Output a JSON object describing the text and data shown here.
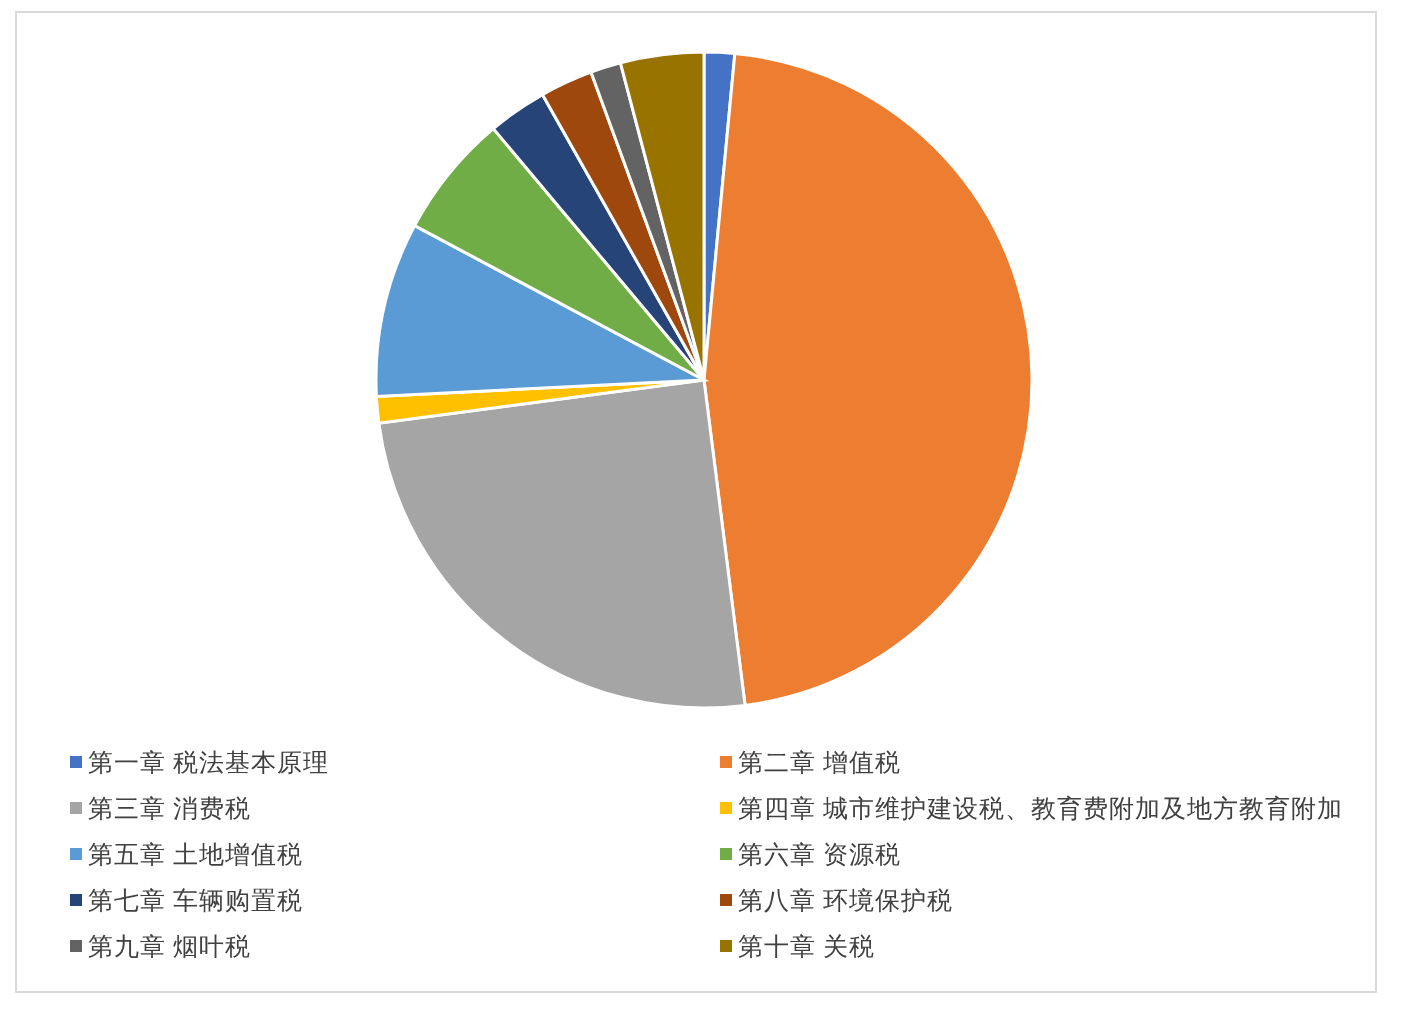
{
  "chart_data": {
    "type": "pie",
    "legend": "bottom",
    "categories": [
      "第一章 税法基本原理",
      "第二章 增值税",
      "第三章 消费税",
      "第四章 城市维护建设税、教育费附加及地方教育附加",
      "第五章 土地增值税",
      "第六章 资源税",
      "第七章 车辆购置税",
      "第八章 环境保护税",
      "第九章 烟叶税",
      "第十章 关税"
    ],
    "values": [
      1.5,
      46.5,
      24.9,
      1.3,
      8.6,
      6.1,
      2.9,
      2.6,
      1.5,
      4.1
    ],
    "colors": [
      "#4472c4",
      "#ed7d31",
      "#a5a5a5",
      "#ffc000",
      "#5b9bd5",
      "#70ad47",
      "#264478",
      "#9e480e",
      "#636363",
      "#997300"
    ]
  }
}
